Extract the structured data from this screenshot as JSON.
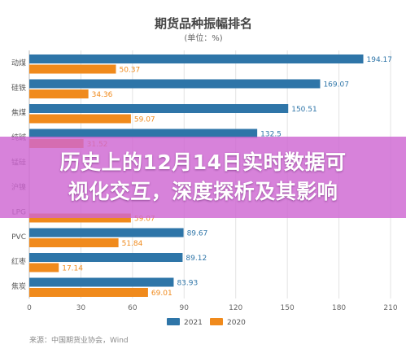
{
  "chart_data": {
    "type": "bar",
    "orientation": "horizontal",
    "title": "期货品种振幅排名",
    "subtitle": "(单位：%)",
    "categories": [
      "动煤",
      "硅铁",
      "焦煤",
      "纯碱",
      "锰硅",
      "沪镍",
      "LPG",
      "PVC",
      "红枣",
      "焦炭"
    ],
    "series": [
      {
        "name": "2021",
        "color": "#2e75a8",
        "values": [
          194.17,
          169.07,
          150.51,
          132.5,
          null,
          null,
          null,
          89.67,
          89.12,
          83.93
        ]
      },
      {
        "name": "2020",
        "color": "#f08a1c",
        "values": [
          50.37,
          34.36,
          59.07,
          31.52,
          null,
          null,
          59.07,
          51.84,
          17.14,
          69.01
        ]
      }
    ],
    "value_labels": {
      "2021": [
        "194.17",
        "169.07",
        "150.51",
        "132.5",
        "",
        "",
        "",
        "89.67",
        "89.12",
        "83.93"
      ],
      "2020": [
        "50.37",
        "34.36",
        "59.07",
        "31.52",
        "",
        "",
        "59.07",
        "51.84",
        "17.14",
        "69.01"
      ]
    },
    "xlim": [
      0,
      210
    ],
    "xticks": [
      0,
      30,
      60,
      90,
      120,
      150,
      180,
      210
    ],
    "grid": true,
    "legend_position": "bottom"
  },
  "banner": {
    "line1": "历史上的12月14日实时数据可",
    "line2": "视化交互，深度探析及其影响"
  },
  "source": "来源：中国期货业协会，Wind"
}
